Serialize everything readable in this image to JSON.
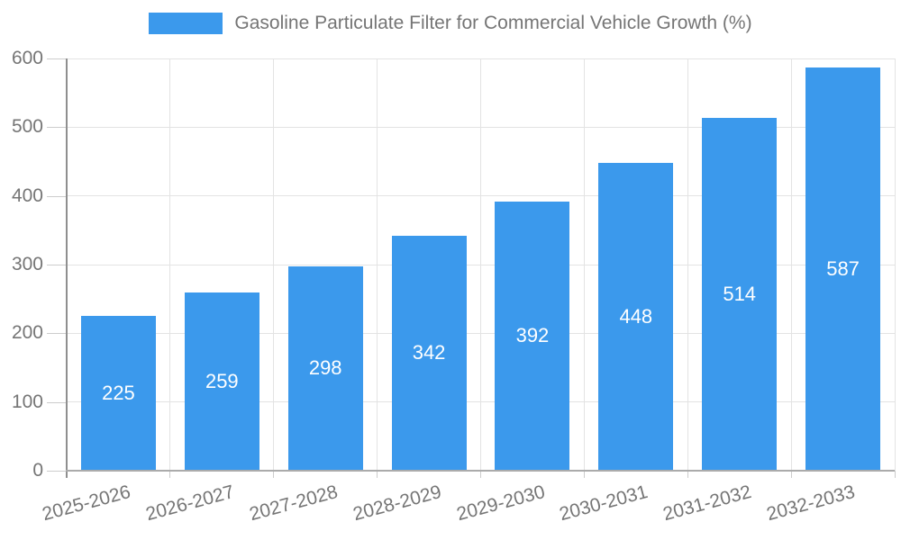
{
  "legend": {
    "label": "Gasoline Particulate Filter for Commercial Vehicle Growth (%)"
  },
  "chart_data": {
    "type": "bar",
    "title": "Gasoline Particulate Filter for Commercial Vehicle Growth (%)",
    "categories": [
      "2025-2026",
      "2026-2027",
      "2027-2028",
      "2028-2029",
      "2029-2030",
      "2030-2031",
      "2031-2032",
      "2032-2033"
    ],
    "values": [
      225,
      259,
      298,
      342,
      392,
      448,
      514,
      587
    ],
    "xlabel": "",
    "ylabel": "",
    "ylim": [
      0,
      600
    ],
    "yticks": [
      0,
      100,
      200,
      300,
      400,
      500,
      600
    ],
    "grid": true,
    "legend_position": "top",
    "bar_color": "#3b99ec",
    "value_label_color": "#ffffff",
    "axis_text_color": "#757575",
    "gridline_color": "#e3e3e3"
  }
}
